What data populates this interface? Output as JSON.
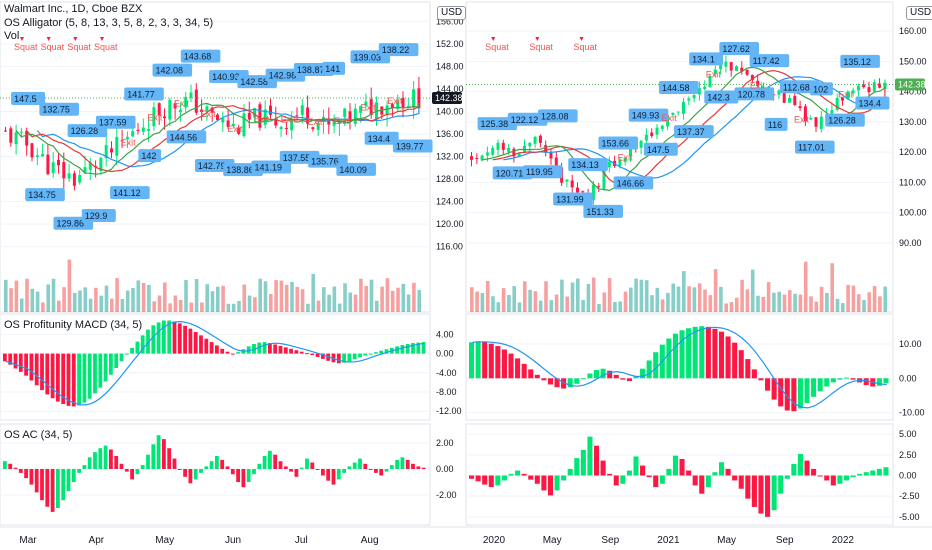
{
  "header": {
    "symbol_line": "Walmart Inc., 1D, Cboe BZX",
    "indicator_alligator": "OS Alligator (5, 8, 13, 3, 5, 8, 2, 3, 3, 34, 5)",
    "indicator_vol": "Vol",
    "panel_macd": "OS Profitunity MACD (34, 5)",
    "panel_ac": "OS AC (34, 5)",
    "currency_left": "USD",
    "currency_right": "USD"
  },
  "colors": {
    "up": "#26a69a",
    "down": "#ef5350",
    "up_bright": "#00e676",
    "down_bright": "#ff1744",
    "jaw": "#2196f3",
    "teeth": "#e53935",
    "lips": "#43a047",
    "label_bg": "#64b5f6",
    "price_line": "#4caf50",
    "last_price_left_bg": "#131722",
    "last_price_right_bg": "#4caf50"
  },
  "chart_data": [
    {
      "type": "candlestick",
      "panel": "left-price",
      "title": "Walmart Inc., 1D, Cboe BZX",
      "x_ticks": [
        "Mar",
        "Apr",
        "May",
        "Jun",
        "Jul",
        "Aug"
      ],
      "y_ticks": [
        "116.00",
        "120.00",
        "124.00",
        "128.00",
        "132.00",
        "136.00",
        "140.00",
        "144.00",
        "148.00",
        "152.00",
        "156.00"
      ],
      "ylim": [
        114,
        158
      ],
      "last_price": "142.38",
      "signal_words": [
        "Squat",
        "Squat",
        "Squat",
        "Squat",
        "Exit",
        "Exit",
        "Exit",
        "Exit",
        "Exit",
        "Exit",
        "Exit",
        "Exit",
        "Exit",
        "Exit",
        "Exit"
      ],
      "price_labels": [
        "147.5",
        "134.75",
        "132.75",
        "129.86",
        "126.28",
        "129.9",
        "137.59",
        "141.12",
        "141.77",
        "142",
        "142.08",
        "144.56",
        "143.68",
        "142.79",
        "140.93",
        "138.86",
        "142.58",
        "141.19",
        "142.98",
        "137.55",
        "138.87",
        "135.76",
        "141",
        "140.09",
        "139.03",
        "134.4",
        "138.22",
        "139.77"
      ]
    },
    {
      "type": "candlestick",
      "panel": "right-price",
      "x_ticks": [
        "2020",
        "May",
        "Sep",
        "2021",
        "May",
        "Sep",
        "2022"
      ],
      "y_ticks": [
        "90.00",
        "100.00",
        "110.00",
        "120.00",
        "130.00",
        "140.00",
        "150.00",
        "160.00"
      ],
      "ylim": [
        85,
        167
      ],
      "last_price": "142.38",
      "signal_words": [
        "Squat",
        "Squat",
        "Squat",
        "Exit",
        "Exit",
        "Exit",
        "Exit",
        "Exit",
        "Exit"
      ],
      "price_labels": [
        "125.38",
        "120.71",
        "122.12",
        "119.95",
        "128.08",
        "131.99",
        "134.13",
        "151.33",
        "153.66",
        "146.66",
        "149.93",
        "147.5",
        "144.58",
        "137.37",
        "134.1",
        "142.3",
        "127.62",
        "120.78",
        "117.42",
        "116",
        "112.68",
        "117.01",
        "102",
        "126.28",
        "135.12",
        "134.4"
      ]
    },
    {
      "type": "bar",
      "panel": "left-macd",
      "title": "OS Profitunity MACD (34, 5)",
      "y_ticks": [
        "4.00",
        "0.00",
        "-4.00",
        "-8.00",
        "-12.00"
      ],
      "ylim": [
        -13,
        7
      ],
      "values": [
        -1.6,
        -2.3,
        -3.1,
        -3.8,
        -4.6,
        -5.6,
        -6.6,
        -7.6,
        -8.5,
        -9.3,
        -10.0,
        -10.5,
        -10.9,
        -11.0,
        -10.8,
        -10.2,
        -9.4,
        -8.3,
        -7.1,
        -5.8,
        -4.4,
        -3.0,
        -1.6,
        -0.2,
        1.2,
        2.5,
        3.8,
        5.0,
        5.9,
        6.5,
        6.9,
        6.9,
        6.7,
        6.3,
        5.8,
        5.2,
        4.5,
        3.8,
        3.1,
        2.4,
        1.7,
        1.0,
        0.4,
        -0.1,
        0.3,
        0.9,
        1.5,
        2.0,
        2.3,
        2.4,
        2.2,
        1.9,
        1.6,
        1.3,
        1.0,
        0.7,
        0.4,
        0.1,
        -0.3,
        -0.7,
        -1.1,
        -1.5,
        -1.8,
        -2.0,
        -1.9,
        -1.6,
        -1.2,
        -0.8,
        -0.4,
        0.0,
        0.3,
        0.6,
        0.9,
        1.2,
        1.5,
        1.8,
        2.0,
        2.2,
        2.3,
        2.4
      ]
    },
    {
      "type": "bar",
      "panel": "left-ac",
      "title": "OS AC (34, 5)",
      "y_ticks": [
        "2.00",
        "0.00",
        "-2.00"
      ],
      "ylim": [
        -4,
        3
      ],
      "values": [
        0.6,
        0.4,
        0.1,
        -0.3,
        -0.7,
        -1.2,
        -1.8,
        -2.4,
        -2.9,
        -3.3,
        -3.0,
        -2.4,
        -1.7,
        -1.0,
        -0.3,
        0.3,
        0.9,
        1.3,
        1.6,
        1.8,
        1.5,
        1.0,
        0.4,
        -0.2,
        -0.8,
        -0.4,
        0.3,
        1.1,
        1.9,
        2.6,
        2.3,
        1.6,
        0.8,
        0.0,
        -0.6,
        -1.1,
        -0.8,
        -0.3,
        0.2,
        0.6,
        1.0,
        0.7,
        0.2,
        -0.4,
        -1.0,
        -1.4,
        -1.0,
        -0.4,
        0.4,
        1.0,
        1.4,
        1.1,
        0.6,
        0.2,
        -0.2,
        -0.6,
        0.1,
        0.8,
        0.5,
        0.0,
        -0.5,
        -0.9,
        -1.2,
        -0.8,
        -0.3,
        0.2,
        0.5,
        0.8,
        0.4,
        0.0,
        -0.3,
        -0.5,
        -0.2,
        0.3,
        0.7,
        0.9,
        0.7,
        0.4,
        0.2,
        0.1
      ]
    },
    {
      "type": "bar",
      "panel": "right-macd",
      "y_ticks": [
        "10.00",
        "0.00",
        "-10.00"
      ],
      "ylim": [
        -11,
        17
      ],
      "values": [
        10.5,
        10.8,
        10.6,
        10.1,
        9.4,
        8.4,
        7.2,
        5.8,
        4.2,
        2.6,
        1.0,
        -0.6,
        -1.8,
        -2.6,
        -3.0,
        -2.6,
        -1.6,
        -0.2,
        1.4,
        2.4,
        2.8,
        2.2,
        1.0,
        -0.4,
        -0.8,
        0.6,
        2.8,
        5.2,
        7.6,
        9.8,
        11.6,
        13.0,
        14.0,
        14.6,
        15.0,
        15.2,
        15.0,
        14.4,
        13.6,
        12.2,
        10.4,
        8.2,
        5.6,
        2.6,
        -0.6,
        -3.6,
        -6.2,
        -8.2,
        -9.4,
        -9.6,
        -8.8,
        -7.2,
        -5.4,
        -3.8,
        -2.4,
        -1.2,
        -0.4,
        0.2,
        -0.4,
        -1.2,
        -2.0,
        -2.4,
        -2.2,
        -1.4
      ]
    },
    {
      "type": "bar",
      "panel": "right-ac",
      "y_ticks": [
        "5.00",
        "2.50",
        "0.00",
        "-2.50",
        "-5.00"
      ],
      "ylim": [
        -5.5,
        5.5
      ],
      "values": [
        -0.4,
        -0.7,
        -1.1,
        -1.4,
        -1.2,
        -0.6,
        0.2,
        0.6,
        0.2,
        -0.5,
        -1.0,
        -1.8,
        -2.4,
        -1.8,
        -0.6,
        0.8,
        2.1,
        3.1,
        4.7,
        3.6,
        1.8,
        0.2,
        -1.2,
        -1.0,
        0.6,
        2.3,
        1.2,
        -0.2,
        -1.4,
        -1.0,
        0.8,
        2.4,
        2.0,
        0.6,
        -1.2,
        -2.2,
        -1.4,
        0.4,
        1.6,
        0.8,
        -0.6,
        -1.6,
        -2.8,
        -3.8,
        -4.6,
        -5.0,
        -4.2,
        -2.2,
        -0.4,
        1.4,
        2.6,
        1.8,
        0.8,
        0.0,
        -0.6,
        -1.2,
        -1.0,
        -0.6,
        -0.2,
        0.2,
        0.4,
        0.6,
        0.8,
        1.0
      ]
    }
  ]
}
